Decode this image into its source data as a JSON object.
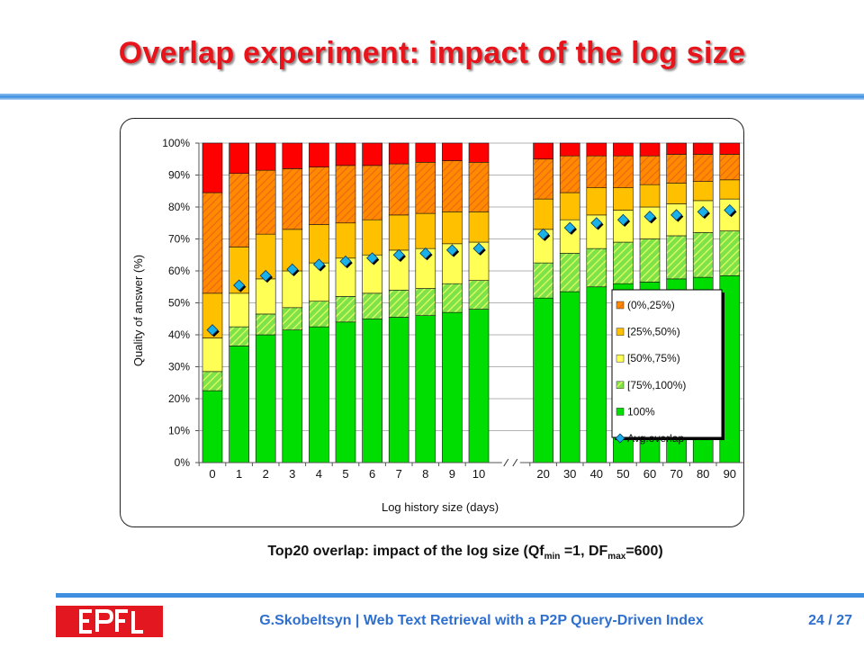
{
  "slide": {
    "title": "Overlap experiment: impact of the log size",
    "caption_main": "Top20 overlap: impact of  the log size (Qf",
    "caption_sub1": "min",
    "caption_mid": " =1, DF",
    "caption_sub2": "max",
    "caption_end": "=600)",
    "footer_text": "G.Skobeltsyn   |   Web Text Retrieval with a P2P Query-Driven Index",
    "page_number": "24 / 27"
  },
  "colors": {
    "title": "#e8141c",
    "accent_blue": "#3f8ee0",
    "logo_red": "#e3171f"
  },
  "chart_data": {
    "type": "bar",
    "stacked": true,
    "xlabel": "Log history size (days)",
    "ylabel": "Quality of answer (%)",
    "ylim": [
      0,
      100
    ],
    "yticks": [
      "0%",
      "10%",
      "20%",
      "30%",
      "40%",
      "50%",
      "60%",
      "70%",
      "80%",
      "90%",
      "100%"
    ],
    "grid": true,
    "axis_break_after": "10",
    "legend_position": "lower-right",
    "categories": [
      "0",
      "1",
      "2",
      "3",
      "4",
      "5",
      "6",
      "7",
      "8",
      "9",
      "10",
      "20",
      "30",
      "40",
      "50",
      "60",
      "70",
      "80",
      "90"
    ],
    "series": [
      {
        "name": "100%",
        "color": "#00dd00",
        "values": [
          22.5,
          36.5,
          40,
          41.5,
          42.5,
          44,
          45,
          45.5,
          46,
          47,
          48,
          51.5,
          53.5,
          55,
          56,
          56.5,
          57.5,
          58,
          58.5
        ]
      },
      {
        "name": "[75%,100%)",
        "color": "#a8e640",
        "values": [
          6,
          6,
          6.5,
          7,
          8,
          8,
          8,
          8.5,
          8.5,
          9,
          9,
          11,
          12,
          12,
          13,
          13.5,
          13.5,
          14,
          14
        ]
      },
      {
        "name": "[50%,75%)",
        "color": "#ffff55",
        "values": [
          10.5,
          10.5,
          11,
          11.5,
          12,
          12,
          12,
          12.5,
          12.5,
          12.5,
          12,
          10.5,
          10.5,
          10.5,
          10,
          10,
          10,
          10,
          10
        ]
      },
      {
        "name": "[25%,50%)",
        "color": "#ffc000",
        "values": [
          14,
          14.5,
          14,
          13,
          12,
          11,
          11,
          11,
          11,
          10,
          9.5,
          9.5,
          8.5,
          8.5,
          7,
          7,
          6.5,
          6,
          6
        ]
      },
      {
        "name": "[0%,25%)",
        "color": "#ff7f00",
        "values": [
          31.5,
          23,
          20,
          19,
          18,
          18,
          17,
          16,
          16,
          16,
          15.5,
          12.5,
          11.5,
          10,
          10,
          9,
          9,
          8.5,
          8
        ]
      },
      {
        "name": "",
        "color": "#ff0000",
        "values": [
          15.5,
          9.5,
          8.5,
          8,
          7.5,
          7,
          7,
          6.5,
          6,
          5.5,
          6,
          5,
          4,
          4,
          4,
          4,
          3.5,
          3.5,
          3.5
        ]
      }
    ],
    "overlap_series": {
      "name": "Avg.overlap",
      "color": "#1ab0e8",
      "values": [
        41.5,
        55.5,
        58.5,
        60.5,
        62,
        63,
        64,
        65,
        65.5,
        66.5,
        67,
        71.5,
        73.5,
        75,
        76,
        77,
        77.5,
        78.5,
        79
      ]
    },
    "legend": [
      "(0%,25%)",
      "[25%,50%)",
      "[50%,75%)",
      "[75%,100%)",
      "100%",
      "Avg.overlap"
    ]
  }
}
